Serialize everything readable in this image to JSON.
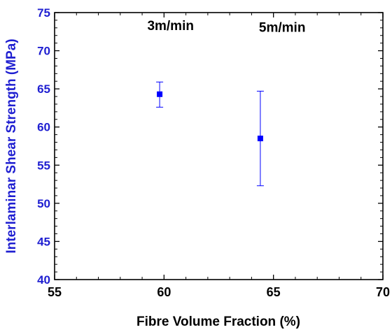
{
  "chart_data": {
    "type": "scatter",
    "xlabel": "Fibre Volume Fraction (%)",
    "ylabel": "Interlaminar Shear Strength (MPa)",
    "xlim": [
      55,
      70
    ],
    "ylim": [
      40,
      75
    ],
    "xticks": [
      55,
      60,
      65,
      70
    ],
    "yticks": [
      40,
      45,
      50,
      55,
      60,
      65,
      70,
      75
    ],
    "grid": false,
    "marker": "square",
    "colors": {
      "series": "#0000ff",
      "ylabel": "#1f1fd1",
      "axis": "#000000"
    },
    "points": [
      {
        "x": 59.8,
        "y": 64.3,
        "err_low": 62.6,
        "err_high": 65.9
      },
      {
        "x": 64.4,
        "y": 58.5,
        "err_low": 52.3,
        "err_high": 64.7
      }
    ],
    "annotations": [
      {
        "text": "3m/min",
        "x": 60.3,
        "y": 72.7
      },
      {
        "text": "5m/min",
        "x": 65.4,
        "y": 72.5
      }
    ]
  }
}
